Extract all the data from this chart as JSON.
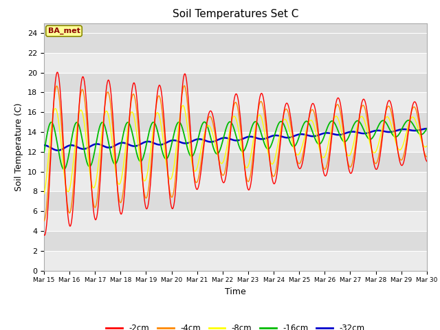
{
  "title": "Soil Temperatures Set C",
  "xlabel": "Time",
  "ylabel": "Soil Temperature (C)",
  "ylim": [
    0,
    25
  ],
  "yticks": [
    0,
    2,
    4,
    6,
    8,
    10,
    12,
    14,
    16,
    18,
    20,
    22,
    24
  ],
  "plot_bg_color": "#dcdcdc",
  "annotation_text": "BA_met",
  "annotation_color": "#8b0000",
  "annotation_bg": "#ffff99",
  "tick_days": [
    15,
    16,
    17,
    18,
    19,
    20,
    21,
    22,
    23,
    24,
    25,
    26,
    27,
    28,
    29,
    30
  ],
  "legend_items": [
    "-2cm",
    "-4cm",
    "-8cm",
    "-16cm",
    "-32cm"
  ],
  "legend_colors": [
    "#ff0000",
    "#ff8800",
    "#ffff00",
    "#00bb00",
    "#0000cc"
  ],
  "series_colors": [
    "#ff0000",
    "#ff8800",
    "#ffff00",
    "#00bb00",
    "#0000cc"
  ],
  "series_lw": [
    1.0,
    1.0,
    1.0,
    1.3,
    1.8
  ]
}
